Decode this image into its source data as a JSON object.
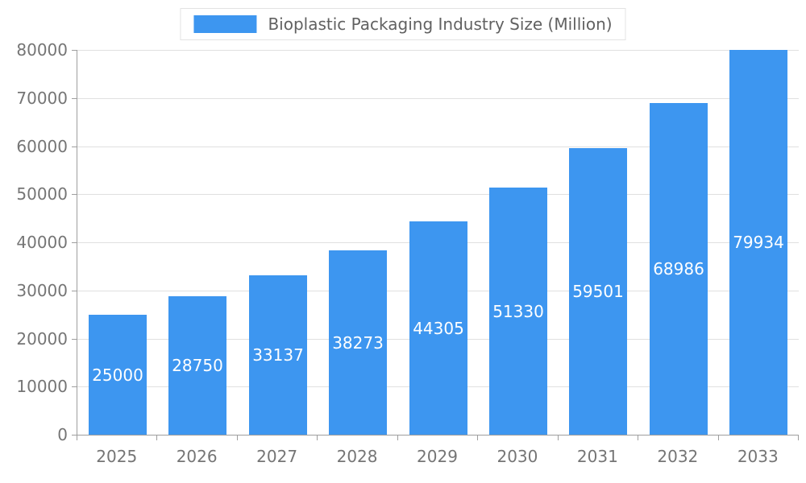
{
  "legend": {
    "label": "Bioplastic Packaging Industry Size (Million)"
  },
  "colors": {
    "bar": "#3D96F0",
    "grid": "#E0E0E0",
    "axis": "#9E9E9E",
    "tick_text": "#757575",
    "value_text": "#FFFFFF",
    "legend_text": "#616161"
  },
  "chart_data": {
    "type": "bar",
    "title": "Bioplastic Packaging Industry Size (Million)",
    "categories": [
      "2025",
      "2026",
      "2027",
      "2028",
      "2029",
      "2030",
      "2031",
      "2032",
      "2033"
    ],
    "values": [
      25000,
      28750,
      33137,
      38273,
      44305,
      51330,
      59501,
      68986,
      79934
    ],
    "xlabel": "",
    "ylabel": "",
    "ylim": [
      0,
      80000
    ],
    "ytick_step": 10000,
    "grid": true,
    "legend_position": "top",
    "value_labels": "inside-center"
  }
}
